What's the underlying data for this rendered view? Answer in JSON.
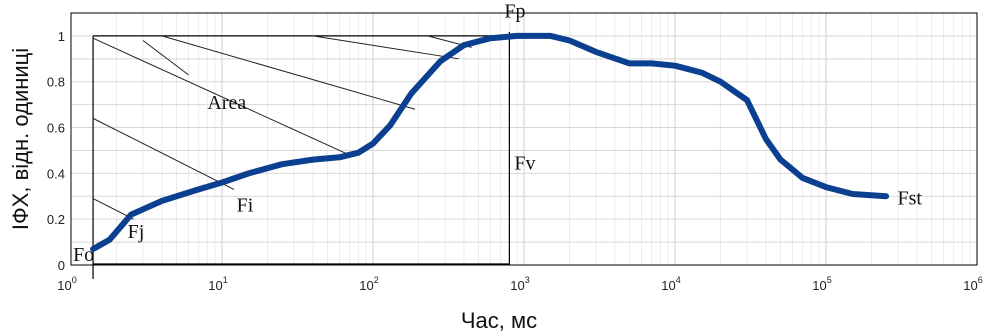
{
  "chart_data": {
    "type": "line",
    "title": "",
    "xlabel": "Час, мс",
    "ylabel": "ІФХ, відн. одиниці",
    "x_scale": "log",
    "xlim": [
      1,
      1000000
    ],
    "ylim": [
      0,
      1.1
    ],
    "grid": true,
    "x_ticks": [
      {
        "base": "10",
        "exp": "0"
      },
      {
        "base": "10",
        "exp": "1"
      },
      {
        "base": "10",
        "exp": "2"
      },
      {
        "base": "10",
        "exp": "3"
      },
      {
        "base": "10",
        "exp": "4"
      },
      {
        "base": "10",
        "exp": "5"
      },
      {
        "base": "10",
        "exp": "6"
      }
    ],
    "y_ticks": [
      "0",
      "0.2",
      "0.4",
      "0.6",
      "0.8",
      "1"
    ],
    "series": [
      {
        "color": "#0b3f8f",
        "x": [
          1.4,
          1.8,
          2.5,
          4,
          7,
          10,
          15,
          25,
          40,
          60,
          80,
          100,
          130,
          180,
          280,
          400,
          600,
          900,
          1200,
          1500,
          2000,
          3000,
          5000,
          7000,
          10000,
          15000,
          20000,
          30000,
          40000,
          50000,
          70000,
          100000,
          150000,
          250000
        ],
        "y": [
          0.07,
          0.11,
          0.22,
          0.28,
          0.33,
          0.36,
          0.4,
          0.44,
          0.46,
          0.47,
          0.49,
          0.53,
          0.61,
          0.75,
          0.89,
          0.96,
          0.99,
          1.0,
          1.0,
          1.0,
          0.98,
          0.93,
          0.88,
          0.88,
          0.87,
          0.84,
          0.8,
          0.72,
          0.55,
          0.46,
          0.38,
          0.34,
          0.31,
          0.3
        ]
      }
    ],
    "annotations": [
      {
        "text": "Fo",
        "x": 1.4,
        "y": 0.07
      },
      {
        "text": "Fj",
        "x": 2.1,
        "y": 0.1
      },
      {
        "text": "Fi",
        "x": 15,
        "y": 0.32
      },
      {
        "text": "Area",
        "x": 8,
        "y": 0.68
      },
      {
        "text": "Fv",
        "x": 800,
        "y": 0.46
      },
      {
        "text": "Fp",
        "x": 800,
        "y": 1.08
      },
      {
        "text": "Fst",
        "x": 280000,
        "y": 0.3
      }
    ]
  }
}
